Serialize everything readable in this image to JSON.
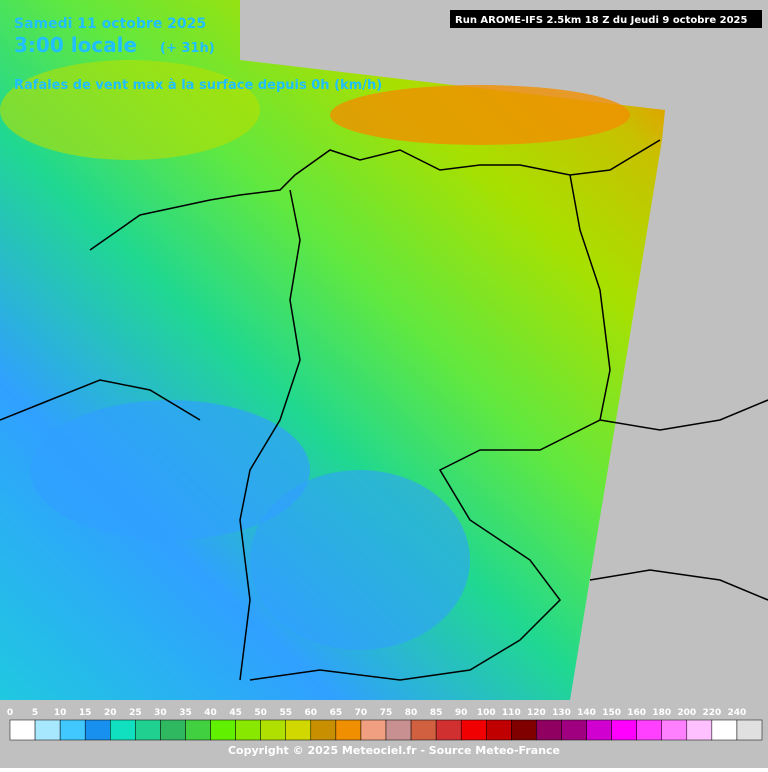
{
  "header": {
    "date": "Samedi 11 octobre 2025",
    "time": "3:00 locale",
    "offset": "(+ 31h)",
    "parameter": "Rafales de vent max à la surface depuis 0h (km/h)",
    "run": "Run AROME-IFS 2.5km 18 Z du Jeudi 9 octobre 2025"
  },
  "legend": {
    "labels": [
      0,
      5,
      10,
      15,
      20,
      25,
      30,
      35,
      40,
      45,
      50,
      55,
      60,
      65,
      70,
      75,
      80,
      85,
      90,
      100,
      110,
      120,
      130,
      140,
      150,
      160,
      180,
      200,
      220,
      240
    ],
    "colors": [
      "#ffffff",
      "#a8e8ff",
      "#40c8ff",
      "#1890f0",
      "#10e0c0",
      "#20d090",
      "#30b860",
      "#40d040",
      "#60f000",
      "#88e800",
      "#b0e000",
      "#d0d800",
      "#c89000",
      "#f09000",
      "#f0a080",
      "#c89090",
      "#d06040",
      "#d03030",
      "#f00000",
      "#c00000",
      "#800000",
      "#900060",
      "#a00080",
      "#d000d0",
      "#ff00ff",
      "#ff40ff",
      "#ff80ff",
      "#ffc0ff",
      "#ffffff",
      "#e0e0e0"
    ]
  },
  "footer": {
    "copyright": "Copyright © 2025 Meteociel.fr - Source Meteo-France"
  }
}
